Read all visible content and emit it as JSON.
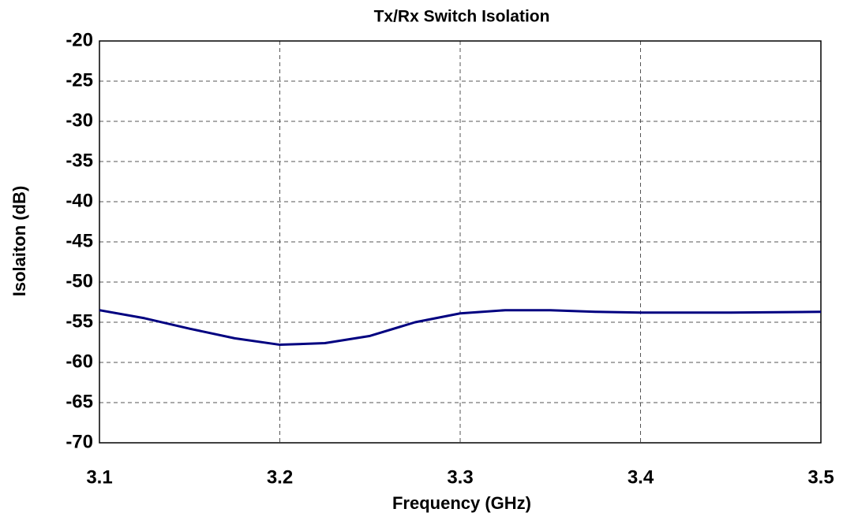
{
  "chart_data": {
    "type": "line",
    "title": "Tx/Rx Switch Isolation",
    "x_label": "Frequency (GHz)",
    "y_label": "Isolaiton (dB)",
    "x": [
      3.1,
      3.125,
      3.15,
      3.175,
      3.2,
      3.225,
      3.25,
      3.275,
      3.3,
      3.325,
      3.35,
      3.375,
      3.4,
      3.45,
      3.5
    ],
    "series": [
      {
        "color": "#000080",
        "values": [
          -53.5,
          -54.5,
          -55.8,
          -57.0,
          -57.8,
          -57.6,
          -56.7,
          -55.0,
          -53.9,
          -53.5,
          -53.5,
          -53.7,
          -53.8,
          -53.8,
          -53.7
        ]
      }
    ],
    "xlim": [
      3.1,
      3.5
    ],
    "xticks": [
      3.1,
      3.2,
      3.3,
      3.4,
      3.5
    ],
    "ylim": [
      -70,
      -20
    ],
    "yticks": [
      -20,
      -25,
      -30,
      -35,
      -40,
      -45,
      -50,
      -55,
      -60,
      -65,
      -70
    ],
    "grid": true
  }
}
